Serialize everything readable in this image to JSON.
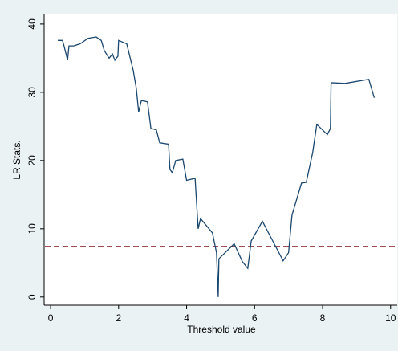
{
  "chart_data": {
    "type": "line",
    "x_label": "Threshold value",
    "y_label": "LR Stats.",
    "x": [
      0.21,
      0.35,
      0.4,
      0.5,
      0.54,
      0.68,
      0.87,
      1.1,
      1.34,
      1.49,
      1.58,
      1.72,
      1.82,
      1.89,
      1.98,
      2.0,
      2.24,
      2.43,
      2.52,
      2.59,
      2.67,
      2.85,
      2.95,
      3.11,
      3.21,
      3.47,
      3.51,
      3.58,
      3.68,
      3.89,
      4.0,
      4.25,
      4.34,
      4.41,
      4.76,
      4.88,
      4.93,
      4.95,
      5.4,
      5.64,
      5.8,
      5.9,
      6.23,
      6.84,
      7.0,
      7.1,
      7.38,
      7.52,
      7.71,
      7.83,
      8.14,
      8.23,
      8.25,
      8.66,
      9.36,
      9.52
    ],
    "series": [
      {
        "color": "#1a476f",
        "values": [
          37.6,
          37.6,
          36.7,
          34.7,
          36.8,
          36.8,
          37.1,
          37.9,
          38.1,
          37.6,
          36.1,
          35.0,
          35.6,
          34.7,
          35.3,
          37.6,
          37.1,
          33.2,
          30.6,
          27.1,
          28.8,
          28.6,
          24.7,
          24.5,
          22.6,
          22.4,
          18.7,
          18.2,
          20.0,
          20.2,
          17.1,
          17.4,
          10.0,
          11.5,
          9.4,
          6.5,
          0.0,
          5.6,
          7.8,
          5.2,
          4.2,
          8.2,
          11.1,
          5.3,
          6.5,
          12.0,
          16.7,
          16.8,
          21.2,
          25.3,
          23.8,
          24.7,
          31.4,
          31.3,
          31.9,
          29.2
        ]
      }
    ],
    "hline": {
      "value": 7.4,
      "color": "#90353b"
    },
    "xlim": [
      -0.19,
      10.1
    ],
    "ylim": [
      -1.2,
      41.4
    ],
    "xticks": [
      0,
      2,
      4,
      6,
      8,
      10
    ],
    "yticks": [
      0,
      10,
      20,
      30,
      40
    ],
    "grid": false
  }
}
